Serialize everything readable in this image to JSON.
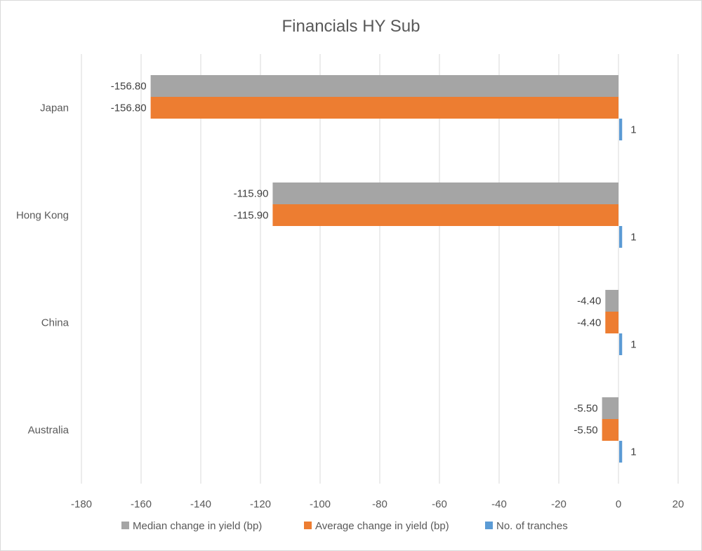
{
  "chart_data": {
    "type": "bar",
    "orientation": "horizontal",
    "title": "Financials HY Sub",
    "categories": [
      "Japan",
      "Hong Kong",
      "China",
      "Australia"
    ],
    "series": [
      {
        "name": "Median change in yield (bp)",
        "color": "#a5a5a5",
        "values": [
          -156.8,
          -115.9,
          -4.4,
          -5.5
        ],
        "labels": [
          "-156.80",
          "-115.90",
          "-4.40",
          "-5.50"
        ]
      },
      {
        "name": "Average change in yield (bp)",
        "color": "#ed7d31",
        "values": [
          -156.8,
          -115.9,
          -4.4,
          -5.5
        ],
        "labels": [
          "-156.80",
          "-115.90",
          "-4.40",
          "-5.50"
        ]
      },
      {
        "name": "No. of tranches",
        "color": "#5b9bd5",
        "values": [
          1,
          1,
          1,
          1
        ],
        "labels": [
          "1",
          "1",
          "1",
          "1"
        ]
      }
    ],
    "xlim": [
      -180,
      20
    ],
    "xticks": [
      -180,
      -160,
      -140,
      -120,
      -100,
      -80,
      -60,
      -40,
      -20,
      0,
      20
    ],
    "grid": true,
    "legend_position": "bottom"
  }
}
